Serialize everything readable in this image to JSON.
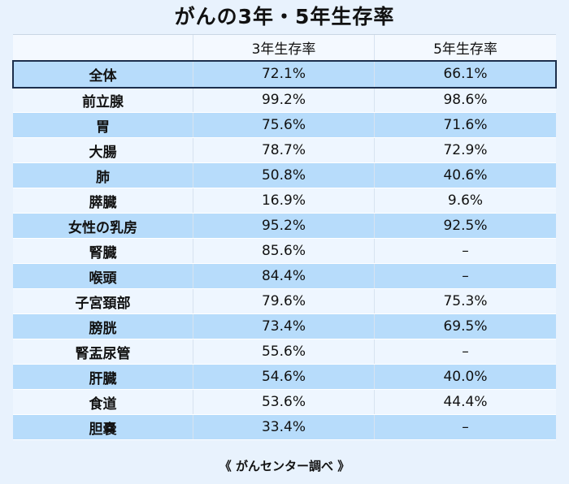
{
  "title": "がんの3年・5年生存率",
  "header": {
    "name": "",
    "three_year": "3年生存率",
    "five_year": "5年生存率"
  },
  "rows": [
    {
      "name": "全体",
      "three_year": "72.1%",
      "five_year": "66.1%"
    },
    {
      "name": "前立腺",
      "three_year": "99.2%",
      "five_year": "98.6%"
    },
    {
      "name": "胃",
      "three_year": "75.6%",
      "five_year": "71.6%"
    },
    {
      "name": "大腸",
      "three_year": "78.7%",
      "five_year": "72.9%"
    },
    {
      "name": "肺",
      "three_year": "50.8%",
      "five_year": "40.6%"
    },
    {
      "name": "膵臓",
      "three_year": "16.9%",
      "five_year": "9.6%"
    },
    {
      "name": "女性の乳房",
      "three_year": "95.2%",
      "five_year": "92.5%"
    },
    {
      "name": "腎臓",
      "three_year": "85.6%",
      "five_year": "–"
    },
    {
      "name": "喉頭",
      "three_year": "84.4%",
      "five_year": "–"
    },
    {
      "name": "子宮頚部",
      "three_year": "79.6%",
      "five_year": "75.3%"
    },
    {
      "name": "膀胱",
      "three_year": "73.4%",
      "five_year": "69.5%"
    },
    {
      "name": "腎盂尿管",
      "three_year": "55.6%",
      "five_year": "–"
    },
    {
      "name": "肝臓",
      "three_year": "54.6%",
      "five_year": "40.0%"
    },
    {
      "name": "食道",
      "three_year": "53.6%",
      "five_year": "44.4%"
    },
    {
      "name": "胆嚢",
      "three_year": "33.4%",
      "five_year": "–"
    }
  ],
  "source": "《 がんセンター調べ 》",
  "colors": {
    "background": "#e8f2fd",
    "row_dark": "#b7dcfb",
    "row_light": "#eef6ff",
    "highlight_border": "#1d2f4c"
  }
}
